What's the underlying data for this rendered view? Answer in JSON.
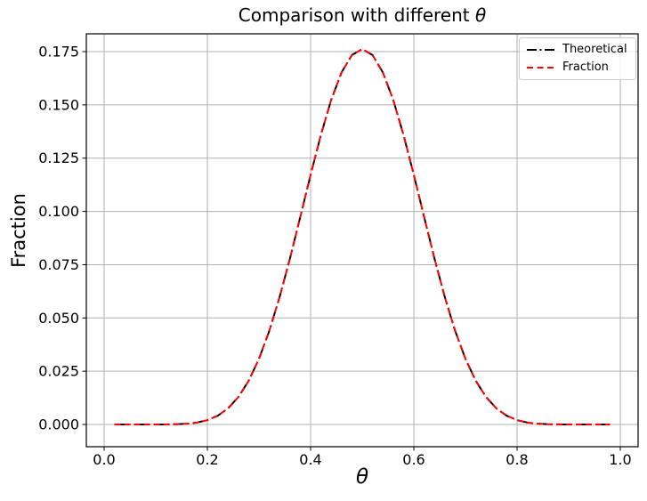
{
  "figure": {
    "background": "#ffffff"
  },
  "chart_data": {
    "type": "line",
    "title_prefix": "Comparison with different ",
    "title_math": "θ",
    "xlabel": "θ",
    "ylabel": "Fraction",
    "grid": true,
    "grid_color": "#b0b0b0",
    "legend_position": "upper-right",
    "xlim": [
      -0.0345,
      1.0345
    ],
    "ylim": [
      -0.01044,
      0.18336
    ],
    "xticks": {
      "values": [
        0.0,
        0.2,
        0.4,
        0.6,
        0.8,
        1.0
      ],
      "labels": [
        "0.0",
        "0.2",
        "0.4",
        "0.6",
        "0.8",
        "1.0"
      ]
    },
    "yticks": {
      "values": [
        0.0,
        0.025,
        0.05,
        0.075,
        0.1,
        0.125,
        0.15,
        0.175
      ],
      "labels": [
        "0.000",
        "0.025",
        "0.050",
        "0.075",
        "0.100",
        "0.125",
        "0.150",
        "0.175"
      ]
    },
    "x": [
      0.02,
      0.04,
      0.06,
      0.08,
      0.1,
      0.12,
      0.14,
      0.16,
      0.18,
      0.2,
      0.22,
      0.24,
      0.26,
      0.28,
      0.3,
      0.32,
      0.34,
      0.36,
      0.38,
      0.4,
      0.42,
      0.44,
      0.46,
      0.48,
      0.5,
      0.52,
      0.54,
      0.56,
      0.58,
      0.6,
      0.62,
      0.64,
      0.66,
      0.68,
      0.7,
      0.72,
      0.74,
      0.76,
      0.78,
      0.8,
      0.82,
      0.84,
      0.86,
      0.88,
      0.9,
      0.92,
      0.94,
      0.96,
      0.98
    ],
    "series": [
      {
        "name": "Theoretical",
        "color": "#000000",
        "linestyle": "dashdot",
        "values": [
          0.0,
          0.0,
          1e-07,
          9e-07,
          6.4e-06,
          3.21e-05,
          0.000118,
          0.000355,
          0.000907,
          0.002031,
          0.004091,
          0.007531,
          0.012843,
          0.02049,
          0.030819,
          0.043972,
          0.059815,
          0.077879,
          0.097351,
          0.117142,
          0.135951,
          0.15241,
          0.165245,
          0.173397,
          0.176197,
          0.173397,
          0.165245,
          0.15241,
          0.135951,
          0.117142,
          0.097351,
          0.077879,
          0.059815,
          0.043972,
          0.030819,
          0.02049,
          0.012843,
          0.007531,
          0.004091,
          0.002031,
          0.000907,
          0.000355,
          0.000118,
          3.21e-05,
          6.4e-06,
          9e-07,
          1e-07,
          0.0,
          0.0
        ]
      },
      {
        "name": "Fraction",
        "color": "#ff0000",
        "linestyle": "dashed",
        "values": [
          0.0,
          0.0,
          1e-07,
          9e-07,
          6.4e-06,
          3.21e-05,
          0.000118,
          0.000355,
          0.000907,
          0.002031,
          0.004091,
          0.007531,
          0.012843,
          0.02049,
          0.030819,
          0.043972,
          0.059815,
          0.077879,
          0.097351,
          0.117142,
          0.135951,
          0.15241,
          0.165245,
          0.173397,
          0.176197,
          0.173397,
          0.165245,
          0.15241,
          0.135951,
          0.117142,
          0.097351,
          0.077879,
          0.059815,
          0.043972,
          0.030819,
          0.02049,
          0.012843,
          0.007531,
          0.004091,
          0.002031,
          0.000907,
          0.000355,
          0.000118,
          3.21e-05,
          6.4e-06,
          9e-07,
          1e-07,
          0.0,
          0.0
        ]
      }
    ]
  }
}
